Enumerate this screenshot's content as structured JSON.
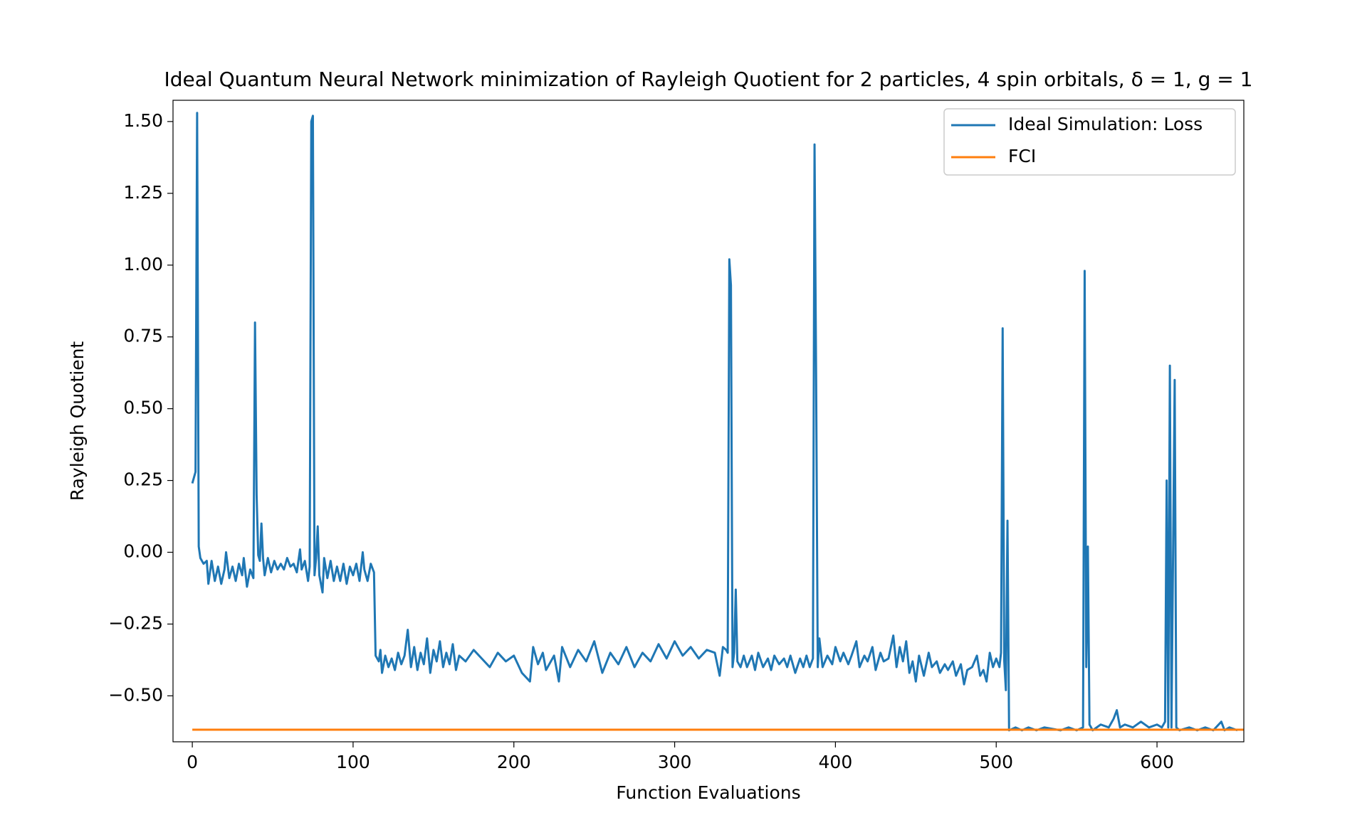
{
  "chart_data": {
    "type": "line",
    "title": "Ideal Quantum Neural Network minimization of Rayleigh Quotient for 2 particles, 4 spin orbitals, δ = 1, g = 1",
    "x_label": "Function Evaluations",
    "y_label": "Rayleigh Quotient",
    "xlim": [
      -12,
      654
    ],
    "ylim": [
      -0.66,
      1.574
    ],
    "xticks": [
      0,
      100,
      200,
      300,
      400,
      500,
      600
    ],
    "yticks": [
      {
        "value": -0.5,
        "label": "−0.50"
      },
      {
        "value": -0.25,
        "label": "−0.25"
      },
      {
        "value": 0,
        "label": "0.00"
      },
      {
        "value": 0.25,
        "label": "0.25"
      },
      {
        "value": 0.5,
        "label": "0.50"
      },
      {
        "value": 0.75,
        "label": "0.75"
      },
      {
        "value": 1,
        "label": "1.00"
      },
      {
        "value": 1.25,
        "label": "1.25"
      },
      {
        "value": 1.5,
        "label": "1.50"
      }
    ],
    "grid": false,
    "legend": "upper right",
    "series": [
      {
        "name": "Ideal Simulation: Loss",
        "color": "#1f77b4",
        "x": [
          0,
          2,
          3,
          4,
          5,
          7,
          9,
          10,
          12,
          14,
          16,
          18,
          20,
          21,
          23,
          25,
          27,
          29,
          31,
          32,
          34,
          36,
          38,
          39,
          40,
          41,
          42,
          43,
          44,
          45,
          47,
          49,
          51,
          53,
          55,
          57,
          59,
          61,
          63,
          65,
          67,
          68,
          70,
          72,
          73,
          74,
          75,
          76,
          77,
          78,
          79,
          81,
          82,
          84,
          86,
          88,
          90,
          92,
          94,
          96,
          98,
          100,
          102,
          104,
          106,
          107,
          109,
          111,
          113,
          114,
          116,
          117,
          118,
          120,
          122,
          124,
          126,
          128,
          130,
          132,
          134,
          136,
          138,
          140,
          142,
          144,
          146,
          148,
          150,
          152,
          154,
          156,
          158,
          160,
          162,
          164,
          166,
          170,
          175,
          180,
          185,
          190,
          195,
          200,
          205,
          210,
          212,
          215,
          218,
          220,
          225,
          228,
          230,
          235,
          240,
          245,
          250,
          255,
          260,
          265,
          270,
          275,
          280,
          285,
          290,
          295,
          300,
          305,
          310,
          315,
          320,
          325,
          328,
          330,
          332,
          333,
          334,
          335,
          336,
          337,
          338,
          339,
          341,
          343,
          345,
          348,
          350,
          352,
          355,
          358,
          360,
          362,
          365,
          368,
          370,
          372,
          375,
          378,
          380,
          382,
          384,
          386,
          387,
          388,
          389,
          390,
          392,
          395,
          398,
          400,
          403,
          405,
          408,
          410,
          413,
          415,
          418,
          420,
          423,
          425,
          428,
          430,
          433,
          436,
          438,
          440,
          442,
          444,
          446,
          448,
          450,
          452,
          455,
          458,
          460,
          463,
          465,
          468,
          470,
          473,
          475,
          478,
          480,
          482,
          485,
          488,
          490,
          492,
          494,
          496,
          498,
          500,
          502,
          503,
          504,
          505,
          506,
          507,
          508,
          512,
          516,
          520,
          525,
          530,
          540,
          545,
          550,
          554,
          555,
          556,
          557,
          558,
          560,
          565,
          570,
          573,
          575,
          577,
          580,
          585,
          590,
          595,
          600,
          603,
          605,
          606,
          607,
          608,
          609,
          611,
          612,
          614,
          620,
          625,
          630,
          635,
          640,
          642,
          645,
          650
        ],
        "values": [
          0.24,
          0.28,
          1.53,
          0.02,
          -0.02,
          -0.04,
          -0.03,
          -0.11,
          -0.03,
          -0.1,
          -0.05,
          -0.11,
          -0.06,
          0.0,
          -0.09,
          -0.05,
          -0.1,
          -0.04,
          -0.08,
          -0.02,
          -0.12,
          -0.06,
          -0.09,
          0.8,
          0.2,
          -0.01,
          -0.03,
          0.1,
          -0.02,
          -0.08,
          -0.02,
          -0.07,
          -0.03,
          -0.06,
          -0.04,
          -0.06,
          -0.02,
          -0.05,
          -0.04,
          -0.07,
          0.01,
          -0.06,
          -0.03,
          -0.1,
          -0.05,
          1.5,
          1.52,
          -0.08,
          -0.02,
          0.09,
          -0.08,
          -0.14,
          -0.02,
          -0.09,
          -0.03,
          -0.1,
          -0.05,
          -0.1,
          -0.04,
          -0.11,
          -0.05,
          -0.08,
          -0.04,
          -0.1,
          0.0,
          -0.06,
          -0.1,
          -0.04,
          -0.07,
          -0.36,
          -0.38,
          -0.34,
          -0.42,
          -0.36,
          -0.4,
          -0.37,
          -0.41,
          -0.35,
          -0.39,
          -0.36,
          -0.27,
          -0.4,
          -0.33,
          -0.41,
          -0.35,
          -0.39,
          -0.3,
          -0.42,
          -0.34,
          -0.38,
          -0.31,
          -0.4,
          -0.35,
          -0.39,
          -0.32,
          -0.41,
          -0.36,
          -0.38,
          -0.34,
          -0.37,
          -0.4,
          -0.35,
          -0.38,
          -0.36,
          -0.42,
          -0.45,
          -0.33,
          -0.39,
          -0.35,
          -0.41,
          -0.36,
          -0.45,
          -0.33,
          -0.4,
          -0.34,
          -0.38,
          -0.31,
          -0.42,
          -0.35,
          -0.39,
          -0.33,
          -0.4,
          -0.35,
          -0.38,
          -0.32,
          -0.37,
          -0.31,
          -0.36,
          -0.33,
          -0.37,
          -0.34,
          -0.35,
          -0.43,
          -0.33,
          -0.34,
          -0.35,
          1.02,
          0.93,
          -0.4,
          -0.35,
          -0.13,
          -0.38,
          -0.4,
          -0.36,
          -0.4,
          -0.36,
          -0.41,
          -0.35,
          -0.4,
          -0.37,
          -0.41,
          -0.36,
          -0.39,
          -0.37,
          -0.4,
          -0.36,
          -0.42,
          -0.37,
          -0.4,
          -0.36,
          -0.4,
          -0.37,
          1.42,
          0.6,
          -0.4,
          -0.3,
          -0.4,
          -0.36,
          -0.39,
          -0.33,
          -0.38,
          -0.35,
          -0.39,
          -0.36,
          -0.31,
          -0.4,
          -0.36,
          -0.38,
          -0.33,
          -0.41,
          -0.35,
          -0.38,
          -0.37,
          -0.29,
          -0.4,
          -0.33,
          -0.38,
          -0.31,
          -0.42,
          -0.38,
          -0.45,
          -0.36,
          -0.43,
          -0.35,
          -0.4,
          -0.38,
          -0.42,
          -0.39,
          -0.41,
          -0.38,
          -0.43,
          -0.39,
          -0.46,
          -0.41,
          -0.4,
          -0.36,
          -0.43,
          -0.41,
          -0.45,
          -0.35,
          -0.4,
          -0.37,
          -0.4,
          -0.35,
          0.78,
          -0.38,
          -0.48,
          0.11,
          -0.62,
          -0.61,
          -0.62,
          -0.61,
          -0.62,
          -0.61,
          -0.62,
          -0.61,
          -0.62,
          -0.61,
          0.98,
          -0.4,
          0.02,
          -0.6,
          -0.62,
          -0.6,
          -0.61,
          -0.58,
          -0.55,
          -0.61,
          -0.6,
          -0.61,
          -0.59,
          -0.61,
          -0.6,
          -0.61,
          -0.59,
          0.25,
          -0.61,
          0.65,
          -0.61,
          0.6,
          -0.61,
          -0.62,
          -0.61,
          -0.62,
          -0.61,
          -0.62,
          -0.59,
          -0.62,
          -0.61,
          -0.62
        ]
      },
      {
        "name": "FCI",
        "color": "#ff7f0e",
        "x": [
          0,
          654
        ],
        "values": [
          -0.618,
          -0.618
        ]
      }
    ]
  }
}
